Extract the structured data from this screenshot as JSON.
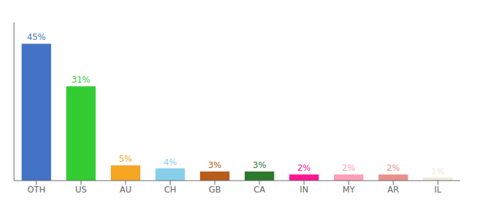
{
  "chart_data": {
    "type": "bar",
    "categories": [
      "OTH",
      "US",
      "AU",
      "CH",
      "GB",
      "CA",
      "IN",
      "MY",
      "AR",
      "IL"
    ],
    "values": [
      45,
      31,
      5,
      4,
      3,
      3,
      2,
      2,
      2,
      1
    ],
    "value_labels": [
      "45%",
      "31%",
      "5%",
      "4%",
      "3%",
      "3%",
      "2%",
      "2%",
      "2%",
      "1%"
    ],
    "colors": [
      "#4472c4",
      "#33cc33",
      "#f5a623",
      "#87ceeb",
      "#b85c1a",
      "#2d7a2d",
      "#ff1493",
      "#ff9eb5",
      "#e8918a",
      "#f0ead6"
    ],
    "ylim": [
      0,
      52
    ],
    "data_labels": true,
    "tick_labels": "x",
    "grid": false
  }
}
